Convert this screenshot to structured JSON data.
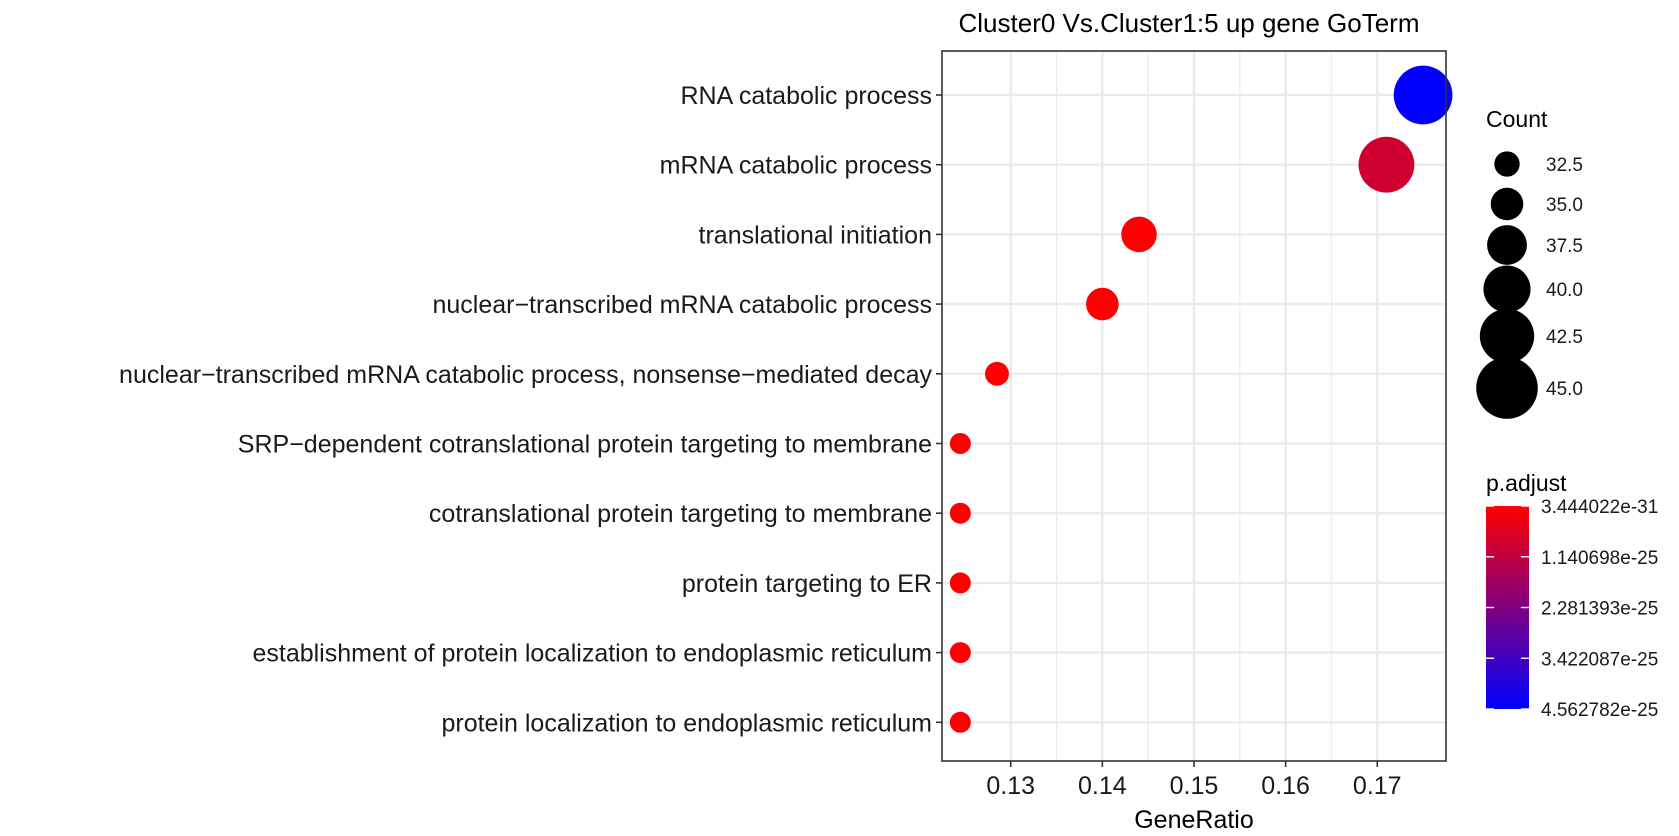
{
  "chart_data": {
    "type": "scatter",
    "title": "Cluster0 Vs.Cluster1:5 up gene GoTerm",
    "xlabel": "GeneRatio",
    "ylabel": "",
    "xlim": [
      0.1225,
      0.1775
    ],
    "x_ticks": [
      0.13,
      0.14,
      0.15,
      0.16,
      0.17
    ],
    "x_tick_labels": [
      "0.13",
      "0.14",
      "0.15",
      "0.16",
      "0.17"
    ],
    "grid": true,
    "points": [
      {
        "term": "RNA catabolic process",
        "gene_ratio": 0.175,
        "count": 44,
        "p_adjust": 4.55e-25
      },
      {
        "term": "mRNA catabolic process",
        "gene_ratio": 0.171,
        "count": 43,
        "p_adjust": 8.5e-26
      },
      {
        "term": "translational initiation",
        "gene_ratio": 0.144,
        "count": 36,
        "p_adjust": 2e-28
      },
      {
        "term": "nuclear−transcribed mRNA catabolic process",
        "gene_ratio": 0.14,
        "count": 35,
        "p_adjust": 2.5e-28
      },
      {
        "term": "nuclear−transcribed mRNA catabolic process, nonsense−mediated decay",
        "gene_ratio": 0.1285,
        "count": 32,
        "p_adjust": 2e-29
      },
      {
        "term": "SRP−dependent cotranslational protein targeting to membrane",
        "gene_ratio": 0.1245,
        "count": 31,
        "p_adjust": 3.444022e-31
      },
      {
        "term": "cotranslational protein targeting to membrane",
        "gene_ratio": 0.1245,
        "count": 31,
        "p_adjust": 3.444022e-31
      },
      {
        "term": "protein targeting to ER",
        "gene_ratio": 0.1245,
        "count": 31,
        "p_adjust": 3.444022e-31
      },
      {
        "term": "establishment of protein localization to endoplasmic reticulum",
        "gene_ratio": 0.1245,
        "count": 31,
        "p_adjust": 3.444022e-31
      },
      {
        "term": "protein localization to endoplasmic reticulum",
        "gene_ratio": 0.1245,
        "count": 31,
        "p_adjust": 3.444022e-31
      }
    ],
    "size_legend": {
      "title": "Count",
      "values": [
        32.5,
        35.0,
        37.5,
        40.0,
        42.5,
        45.0
      ],
      "labels": [
        "32.5",
        "35.0",
        "37.5",
        "40.0",
        "42.5",
        "45.0"
      ]
    },
    "color_legend": {
      "title": "p.adjust",
      "min": 3.444022e-31,
      "max": 4.562782e-25,
      "values": [
        3.444022e-31,
        1.140698e-25,
        2.281393e-25,
        3.422087e-25,
        4.562782e-25
      ],
      "labels": [
        "3.444022e-31",
        "1.140698e-25",
        "2.281393e-25",
        "3.422087e-25",
        "4.562782e-25"
      ],
      "low_color": "#FF0000",
      "high_color": "#0000FF"
    },
    "colors": {
      "grid": "#EBEBEB",
      "panel_border": "#333333",
      "point_outline": "none"
    }
  }
}
